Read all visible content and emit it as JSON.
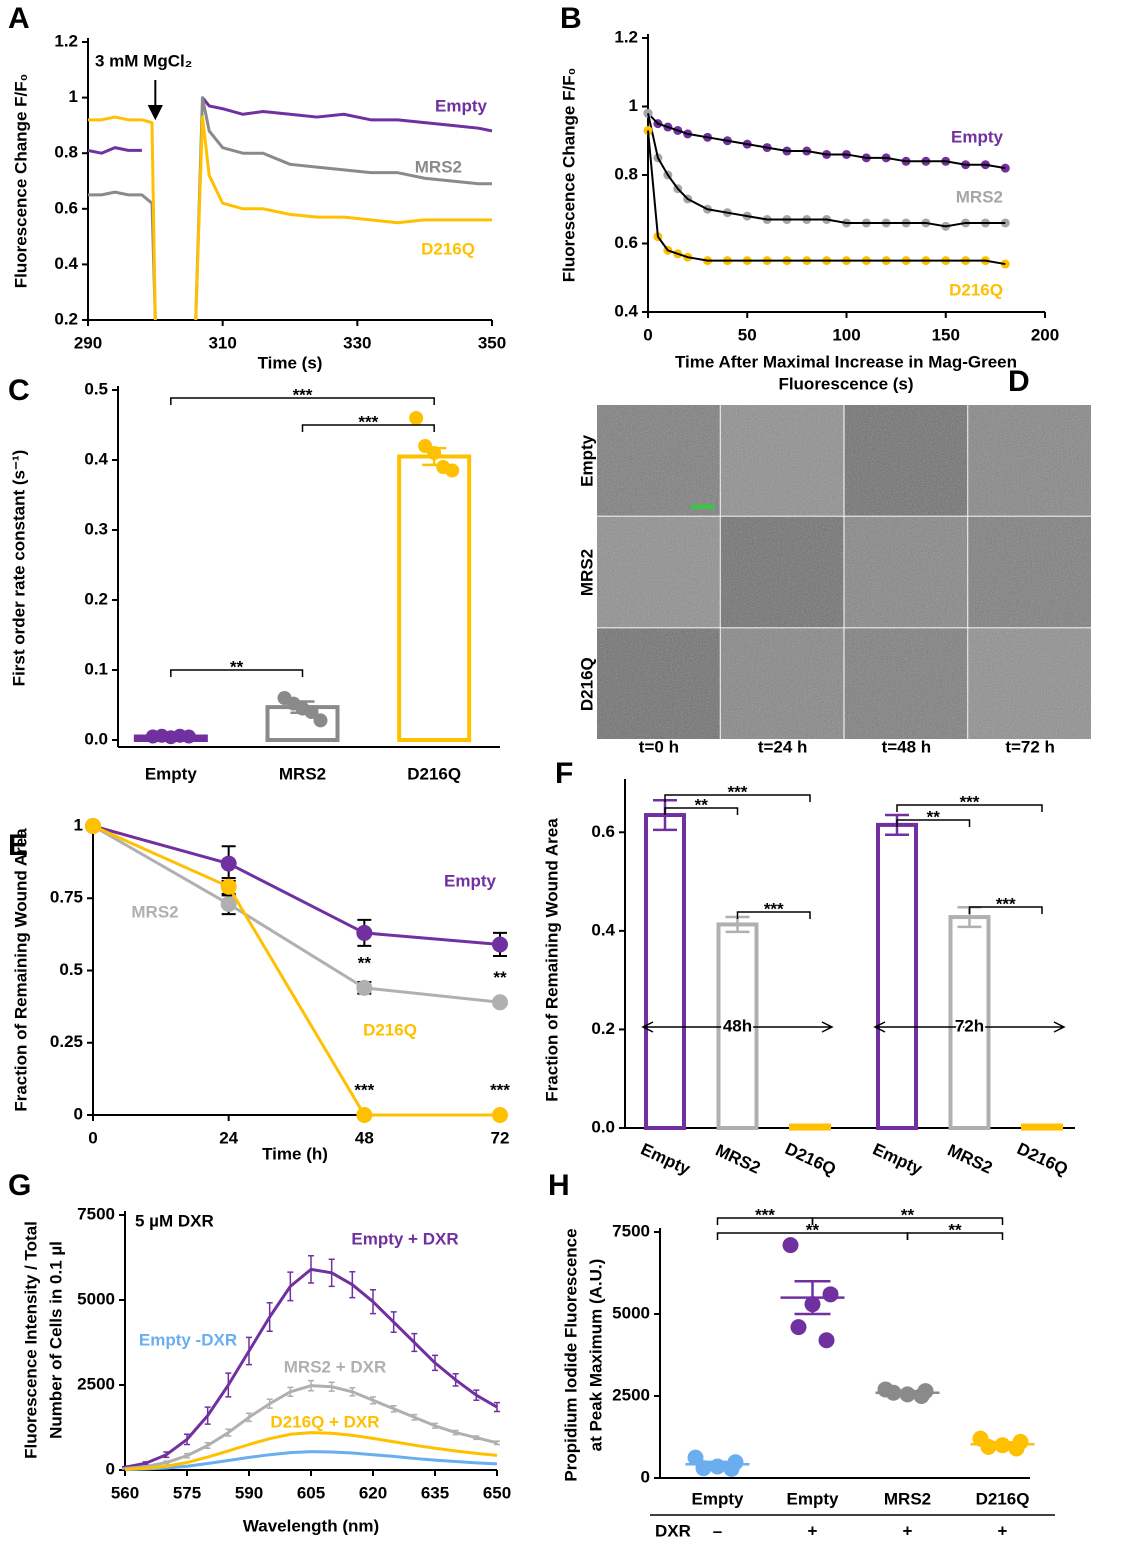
{
  "chart_data": [
    {
      "panel": "A",
      "type": "line",
      "ylabel": "Fluorescence Change F/F₀",
      "xlabel": "Time (s)",
      "xlim": [
        290,
        350
      ],
      "ylim": [
        0.2,
        1.2
      ],
      "xticks": [
        290,
        310,
        330,
        350
      ],
      "yticks": [
        0.2,
        0.4,
        0.6,
        0.8,
        1,
        1.2
      ],
      "annotation": {
        "text": "3 mM MgCl₂",
        "x": 300
      },
      "x": [
        290,
        292,
        294,
        296,
        298,
        299.5,
        300,
        303,
        306,
        307,
        308,
        310,
        313,
        316,
        320,
        324,
        328,
        332,
        336,
        340,
        344,
        348,
        350
      ],
      "series": [
        {
          "name": "Empty",
          "color": "#7030a0",
          "values": [
            0.81,
            0.8,
            0.82,
            0.81,
            0.81,
            null,
            null,
            null,
            null,
            1.0,
            0.97,
            0.96,
            0.94,
            0.95,
            0.94,
            0.93,
            0.94,
            0.92,
            0.92,
            0.91,
            0.9,
            0.89,
            0.88
          ]
        },
        {
          "name": "MRS2",
          "color": "#8a8a8a",
          "values": [
            0.65,
            0.65,
            0.66,
            0.65,
            0.65,
            0.62,
            0.2,
            null,
            0.2,
            1.0,
            0.88,
            0.82,
            0.8,
            0.8,
            0.76,
            0.75,
            0.74,
            0.73,
            0.73,
            0.71,
            0.7,
            0.69,
            0.69
          ]
        },
        {
          "name": "D216Q",
          "color": "#ffc000",
          "values": [
            0.92,
            0.92,
            0.93,
            0.92,
            0.92,
            0.91,
            0.2,
            null,
            0.2,
            0.93,
            0.72,
            0.62,
            0.6,
            0.6,
            0.58,
            0.57,
            0.57,
            0.56,
            0.55,
            0.56,
            0.56,
            0.56,
            0.56
          ]
        }
      ]
    },
    {
      "panel": "B",
      "type": "scatter",
      "ylabel": "Fluorescence Change F/F₀",
      "xlabel": [
        "Time After Maximal Increase in Mag-Green",
        "Fluorescence (s)"
      ],
      "xlim": [
        0,
        200
      ],
      "ylim": [
        0.4,
        1.2
      ],
      "xticks": [
        0,
        50,
        100,
        150,
        200
      ],
      "yticks": [
        0.4,
        0.6,
        0.8,
        1,
        1.2
      ],
      "fit_color": "#000000",
      "x": [
        0,
        5,
        10,
        15,
        20,
        30,
        40,
        50,
        60,
        70,
        80,
        90,
        100,
        110,
        120,
        130,
        140,
        150,
        160,
        170,
        180
      ],
      "series": [
        {
          "name": "Empty",
          "color": "#7030a0",
          "values": [
            0.98,
            0.95,
            0.94,
            0.93,
            0.92,
            0.91,
            0.9,
            0.89,
            0.88,
            0.87,
            0.87,
            0.86,
            0.86,
            0.85,
            0.85,
            0.84,
            0.84,
            0.84,
            0.83,
            0.83,
            0.82
          ]
        },
        {
          "name": "MRS2",
          "color": "#a6a6a6",
          "values": [
            0.98,
            0.85,
            0.8,
            0.76,
            0.73,
            0.7,
            0.69,
            0.68,
            0.67,
            0.67,
            0.67,
            0.67,
            0.66,
            0.66,
            0.66,
            0.66,
            0.66,
            0.65,
            0.66,
            0.66,
            0.66
          ]
        },
        {
          "name": "D216Q",
          "color": "#ffc000",
          "values": [
            0.93,
            0.62,
            0.58,
            0.57,
            0.56,
            0.55,
            0.55,
            0.55,
            0.55,
            0.55,
            0.55,
            0.55,
            0.55,
            0.55,
            0.55,
            0.55,
            0.55,
            0.55,
            0.55,
            0.55,
            0.54
          ]
        }
      ]
    },
    {
      "panel": "C",
      "type": "bar",
      "ylabel": "First order rate constant (s⁻¹)",
      "ylim": [
        -0.01,
        0.5
      ],
      "yticks": [
        {
          "value": 0,
          "label": "0.0"
        },
        0.1,
        0.2,
        0.3,
        0.4,
        0.5
      ],
      "categories": [
        "Empty",
        "MRS2",
        "D216Q"
      ],
      "colors": [
        "#7030a0",
        "#8a8a8a",
        "#ffc000"
      ],
      "values": [
        0.005,
        0.047,
        0.405
      ],
      "errors": [
        0.002,
        0.008,
        0.012
      ],
      "points": [
        [
          0.005,
          0.006,
          0.004,
          0.006,
          0.005
        ],
        [
          0.06,
          0.052,
          0.045,
          0.04,
          0.028
        ],
        [
          0.46,
          0.42,
          0.41,
          0.39,
          0.385
        ]
      ],
      "brackets": [
        {
          "from": 0,
          "to": 2,
          "label": "***"
        },
        {
          "from": 1,
          "to": 2,
          "label": "***"
        },
        {
          "from": 0,
          "to": 1,
          "label": "**"
        }
      ]
    },
    {
      "panel": "D",
      "type": "image-grid",
      "rows": [
        "Empty",
        "MRS2",
        "D216Q"
      ],
      "columns": [
        "t=0 h",
        "t=24 h",
        "t=48 h",
        "t=72 h"
      ]
    },
    {
      "panel": "E",
      "type": "line",
      "markers": true,
      "xlabel": "Time (h)",
      "ylabel": "Fraction of Remaining Wound Area",
      "xlim": [
        0,
        72
      ],
      "ylim": [
        0,
        1
      ],
      "xticks": [
        0,
        24,
        48,
        72
      ],
      "yticks": [
        0,
        0.25,
        0.5,
        0.75,
        1
      ],
      "x": [
        0,
        24,
        48,
        72
      ],
      "series": [
        {
          "name": "Empty",
          "color": "#7030a0",
          "values": [
            1,
            0.87,
            0.63,
            0.59
          ],
          "errors": [
            0,
            0.06,
            0.045,
            0.04
          ]
        },
        {
          "name": "MRS2",
          "color": "#b0b0b0",
          "values": [
            1,
            0.73,
            0.44,
            0.39
          ],
          "errors": [
            0,
            0.035,
            0.02,
            0.01
          ],
          "significance": [
            null,
            null,
            "**",
            "**"
          ]
        },
        {
          "name": "D216Q",
          "color": "#ffc000",
          "values": [
            1,
            0.79,
            0,
            0
          ],
          "errors": [
            0,
            0.03,
            0,
            0
          ],
          "significance": [
            null,
            null,
            "***",
            "***"
          ]
        }
      ]
    },
    {
      "panel": "F",
      "type": "grouped-bar",
      "ylabel": "Fraction of Remaining Wound Area",
      "ylim": [
        0,
        0.7
      ],
      "yticks": [
        {
          "value": 0,
          "label": "0.0"
        },
        0.2,
        0.4,
        0.6
      ],
      "categories": [
        "Empty",
        "MRS2",
        "D216Q"
      ],
      "colors": [
        "#7030a0",
        "#b0b0b0",
        "#ffc000"
      ],
      "groups": [
        {
          "label": "48h",
          "values": [
            0.635,
            0.413,
            0.005
          ],
          "errors": [
            0.03,
            0.015,
            0.001
          ],
          "brackets": [
            {
              "from": 0,
              "to": 1,
              "label": "**"
            },
            {
              "from": 0,
              "to": 2,
              "label": "***"
            },
            {
              "from": 1,
              "to": 2,
              "label": "***"
            }
          ]
        },
        {
          "label": "72h",
          "values": [
            0.615,
            0.428,
            0.005
          ],
          "errors": [
            0.02,
            0.02,
            0.001
          ],
          "brackets": [
            {
              "from": 0,
              "to": 1,
              "label": "**"
            },
            {
              "from": 0,
              "to": 2,
              "label": "***"
            },
            {
              "from": 1,
              "to": 2,
              "label": "***"
            }
          ]
        }
      ]
    },
    {
      "panel": "G",
      "type": "line",
      "ylabel": [
        "Fluorescence Intensity / Total",
        "Number of Cells in 0.1 µl"
      ],
      "xlabel": "Wavelength (nm)",
      "xlim": [
        560,
        650
      ],
      "ylim": [
        0,
        7500
      ],
      "xticks": [
        560,
        575,
        590,
        605,
        620,
        635,
        650
      ],
      "yticks": [
        0,
        2500,
        5000,
        7500
      ],
      "annotation": {
        "text": "5 µM DXR"
      },
      "x": [
        560,
        565,
        570,
        575,
        580,
        585,
        590,
        595,
        600,
        605,
        610,
        615,
        620,
        625,
        630,
        635,
        640,
        645,
        650
      ],
      "series": [
        {
          "name": "Empty + DXR",
          "color": "#7030a0",
          "values": [
            80,
            200,
            450,
            900,
            1600,
            2500,
            3500,
            4500,
            5400,
            5900,
            5800,
            5450,
            4950,
            4350,
            3750,
            3150,
            2650,
            2200,
            1850
          ],
          "errors": [
            20,
            40,
            80,
            150,
            250,
            350,
            400,
            420,
            420,
            400,
            400,
            380,
            350,
            300,
            260,
            220,
            180,
            150,
            130
          ]
        },
        {
          "name": "Empty -DXR",
          "color": "#6aaef0",
          "values": [
            10,
            30,
            60,
            110,
            190,
            280,
            370,
            450,
            510,
            540,
            530,
            500,
            450,
            400,
            340,
            290,
            250,
            210,
            180
          ]
        },
        {
          "name": "MRS2 + DXR",
          "color": "#b0b0b0",
          "values": [
            40,
            100,
            220,
            420,
            720,
            1100,
            1550,
            1950,
            2300,
            2480,
            2450,
            2300,
            2050,
            1800,
            1550,
            1300,
            1100,
            950,
            800
          ],
          "errors": [
            10,
            20,
            40,
            60,
            80,
            100,
            120,
            130,
            130,
            150,
            130,
            120,
            100,
            90,
            80,
            70,
            60,
            50,
            50
          ]
        },
        {
          "name": "D216Q + DXR",
          "color": "#ffc000",
          "values": [
            20,
            50,
            110,
            220,
            380,
            560,
            750,
            920,
            1050,
            1100,
            1080,
            1020,
            930,
            830,
            730,
            640,
            560,
            490,
            430
          ]
        }
      ]
    },
    {
      "panel": "H",
      "type": "dot",
      "ylabel": [
        "Propidium Iodide Fluorescence",
        "at Peak Maximum (A.U.)"
      ],
      "ylim": [
        0,
        7500
      ],
      "yticks": [
        0,
        2500,
        5000,
        7500
      ],
      "categories": [
        "Empty",
        "Empty",
        "MRS2",
        "D216Q"
      ],
      "treatment_label": "DXR",
      "treatment": [
        "–",
        "+",
        "+",
        "+"
      ],
      "colors": [
        "#6aaef0",
        "#7030a0",
        "#8a8a8a",
        "#ffc000"
      ],
      "points": [
        [
          620,
          480,
          350,
          300,
          280
        ],
        [
          7100,
          5600,
          5300,
          4600,
          4200
        ],
        [
          2700,
          2650,
          2550,
          2600,
          2500
        ],
        [
          1200,
          1100,
          1000,
          950,
          900
        ]
      ],
      "means": [
        420,
        5500,
        2600,
        1030
      ],
      "errors": [
        70,
        500,
        50,
        60
      ],
      "brackets": [
        {
          "from": 0,
          "to": 1,
          "label": "***"
        },
        {
          "from": 0,
          "to": 2,
          "label": "**"
        },
        {
          "from": 1,
          "to": 3,
          "label": "**"
        },
        {
          "from": 2,
          "to": 3,
          "label": "**"
        }
      ]
    }
  ]
}
